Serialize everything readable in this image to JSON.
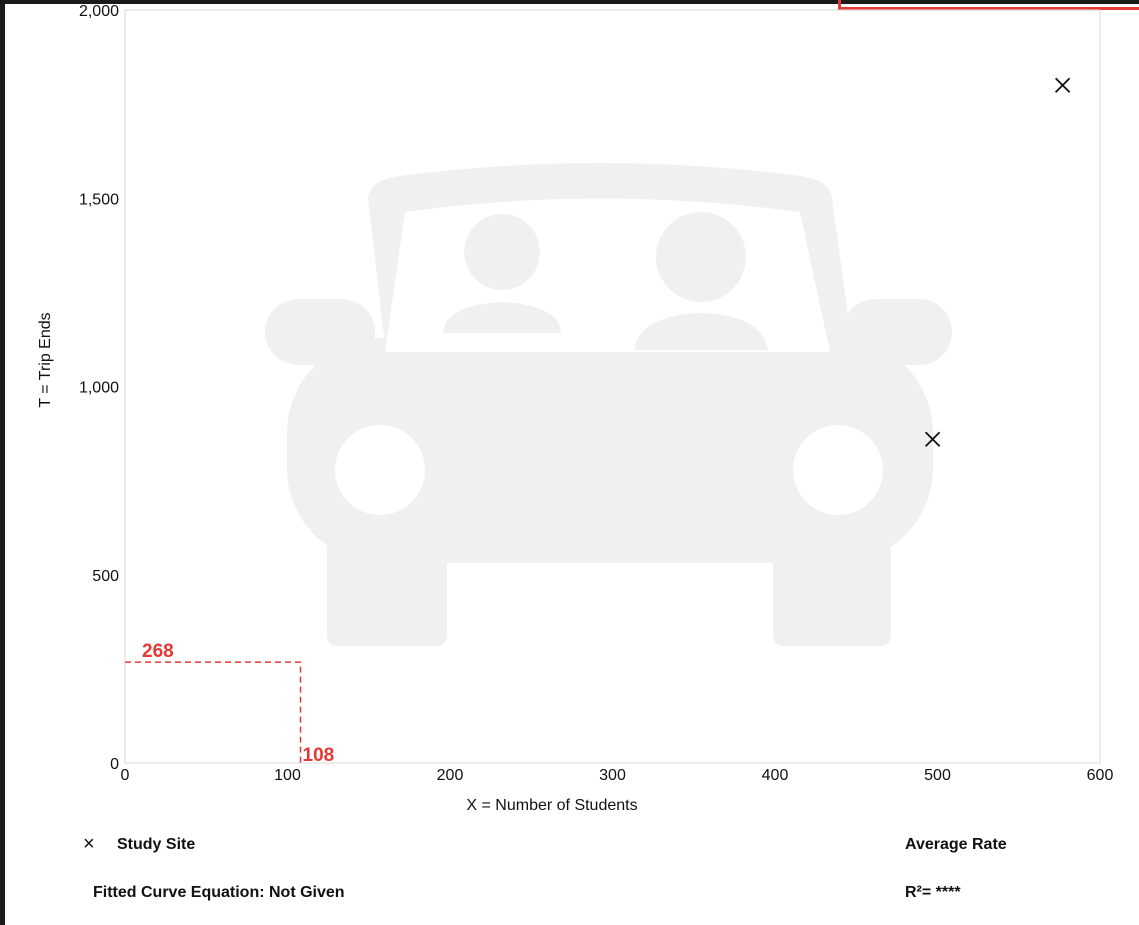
{
  "chart_data": {
    "type": "scatter",
    "xlabel": "X = Number of Students",
    "ylabel": "T = Trip Ends",
    "xlim": [
      0,
      600
    ],
    "ylim": [
      0,
      2000
    ],
    "xticks": [
      0,
      100,
      200,
      300,
      400,
      500,
      600
    ],
    "xtick_labels": [
      "0",
      "100",
      "200",
      "300",
      "400",
      "500",
      "600"
    ],
    "yticks": [
      0,
      500,
      1000,
      1500,
      2000
    ],
    "ytick_labels": [
      "0",
      "500",
      "1,000",
      "1,500",
      "2,000"
    ],
    "grid": false,
    "series": [
      {
        "name": "Study Site",
        "marker": "x",
        "color": "#111111",
        "points": [
          {
            "x": 497,
            "y": 860
          },
          {
            "x": 577,
            "y": 1800
          }
        ]
      }
    ],
    "annotations": [
      {
        "type": "reference",
        "x": 108,
        "y": 268,
        "x_label": "108",
        "y_label": "268",
        "color": "#e53935",
        "style": "dashed"
      }
    ]
  },
  "legend": {
    "marker_glyph": "×",
    "study_site": "Study Site",
    "average_rate": "Average Rate"
  },
  "footer": {
    "fitted_curve": "Fitted Curve Equation: Not Given",
    "r_squared": "R²= ****"
  },
  "colors": {
    "annotation": "#e53935",
    "watermark": "#f0f0f0",
    "axis": "#cccccc"
  },
  "background_icon": "car-with-passengers-icon"
}
